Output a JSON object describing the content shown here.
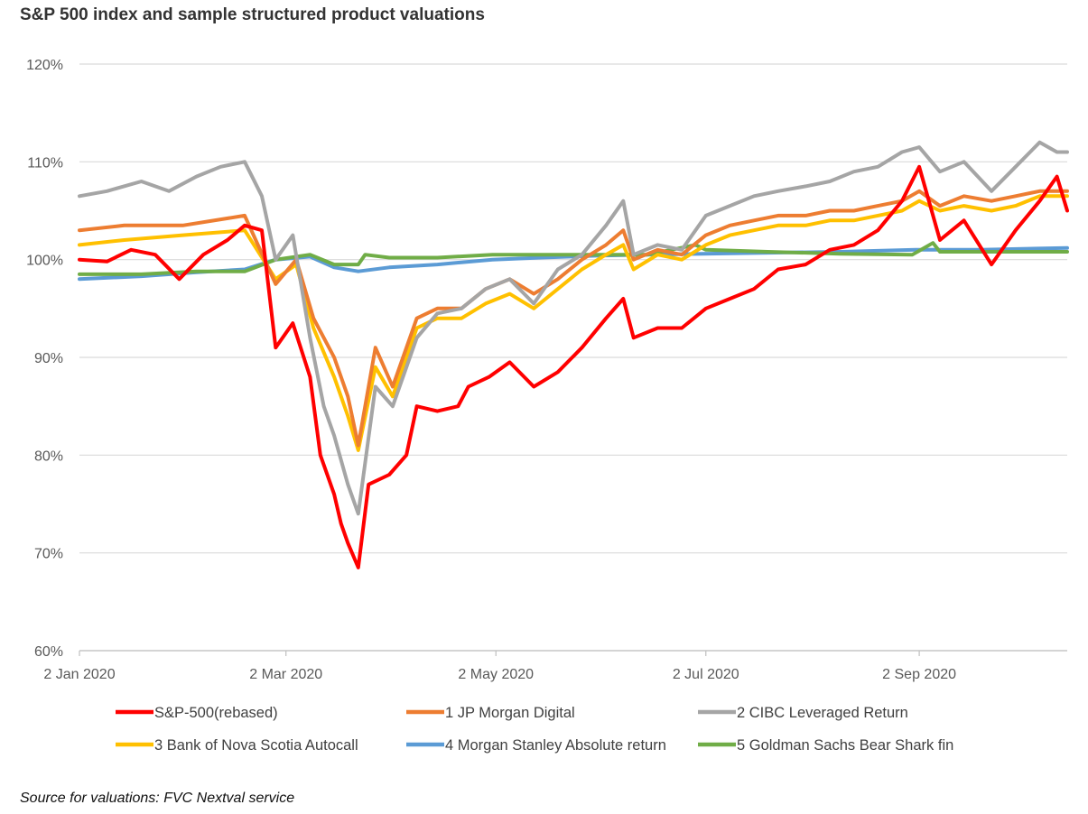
{
  "title": "S&P 500 index and sample structured product valuations",
  "source": "Source for valuations: FVC Nextval service",
  "chart_data": {
    "type": "line",
    "ylim": [
      60,
      120
    ],
    "xlim": [
      "2020-01-02",
      "2020-10-15"
    ],
    "y_ticks": [
      {
        "value": 60,
        "label": "60%"
      },
      {
        "value": 70,
        "label": "70%"
      },
      {
        "value": 80,
        "label": "80%"
      },
      {
        "value": 90,
        "label": "90%"
      },
      {
        "value": 100,
        "label": "100%"
      },
      {
        "value": 110,
        "label": "110%"
      },
      {
        "value": 120,
        "label": "120%"
      }
    ],
    "x_ticks": [
      {
        "date": "2020-01-02",
        "label": "2 Jan 2020"
      },
      {
        "date": "2020-03-02",
        "label": "2 Mar 2020"
      },
      {
        "date": "2020-05-02",
        "label": "2 May 2020"
      },
      {
        "date": "2020-07-02",
        "label": "2 Jul 2020"
      },
      {
        "date": "2020-09-02",
        "label": "2 Sep 2020"
      }
    ],
    "grid": "horizontal",
    "legend_position": "bottom",
    "series": [
      {
        "name": "S&P-500(rebased)",
        "color": "#ff0000",
        "points": [
          [
            "2020-01-02",
            100
          ],
          [
            "2020-01-10",
            99.8
          ],
          [
            "2020-01-17",
            101
          ],
          [
            "2020-01-24",
            100.5
          ],
          [
            "2020-01-31",
            98
          ],
          [
            "2020-02-07",
            100.5
          ],
          [
            "2020-02-14",
            102
          ],
          [
            "2020-02-19",
            103.5
          ],
          [
            "2020-02-24",
            103
          ],
          [
            "2020-02-28",
            91
          ],
          [
            "2020-03-04",
            93.5
          ],
          [
            "2020-03-09",
            88
          ],
          [
            "2020-03-12",
            80
          ],
          [
            "2020-03-16",
            76
          ],
          [
            "2020-03-18",
            73
          ],
          [
            "2020-03-20",
            71
          ],
          [
            "2020-03-23",
            68.5
          ],
          [
            "2020-03-26",
            77
          ],
          [
            "2020-04-01",
            78
          ],
          [
            "2020-04-06",
            80
          ],
          [
            "2020-04-09",
            85
          ],
          [
            "2020-04-15",
            84.5
          ],
          [
            "2020-04-21",
            85
          ],
          [
            "2020-04-24",
            87
          ],
          [
            "2020-04-30",
            88
          ],
          [
            "2020-05-06",
            89.5
          ],
          [
            "2020-05-13",
            87
          ],
          [
            "2020-05-20",
            88.5
          ],
          [
            "2020-05-27",
            91
          ],
          [
            "2020-06-03",
            94
          ],
          [
            "2020-06-08",
            96
          ],
          [
            "2020-06-11",
            92
          ],
          [
            "2020-06-18",
            93
          ],
          [
            "2020-06-25",
            93
          ],
          [
            "2020-07-02",
            95
          ],
          [
            "2020-07-09",
            96
          ],
          [
            "2020-07-16",
            97
          ],
          [
            "2020-07-23",
            99
          ],
          [
            "2020-07-31",
            99.5
          ],
          [
            "2020-08-07",
            101
          ],
          [
            "2020-08-14",
            101.5
          ],
          [
            "2020-08-21",
            103
          ],
          [
            "2020-08-28",
            106
          ],
          [
            "2020-09-02",
            109.5
          ],
          [
            "2020-09-08",
            102
          ],
          [
            "2020-09-15",
            104
          ],
          [
            "2020-09-23",
            99.5
          ],
          [
            "2020-09-30",
            103
          ],
          [
            "2020-10-07",
            106
          ],
          [
            "2020-10-12",
            108.5
          ],
          [
            "2020-10-15",
            105
          ]
        ]
      },
      {
        "name": "1 JP Morgan Digital",
        "color": "#ed7d31",
        "points": [
          [
            "2020-01-02",
            103
          ],
          [
            "2020-01-15",
            103.5
          ],
          [
            "2020-02-01",
            103.5
          ],
          [
            "2020-02-19",
            104.5
          ],
          [
            "2020-02-28",
            97.5
          ],
          [
            "2020-03-05",
            100
          ],
          [
            "2020-03-10",
            94
          ],
          [
            "2020-03-16",
            90
          ],
          [
            "2020-03-20",
            86
          ],
          [
            "2020-03-23",
            81
          ],
          [
            "2020-03-28",
            91
          ],
          [
            "2020-04-02",
            87
          ],
          [
            "2020-04-09",
            94
          ],
          [
            "2020-04-15",
            95
          ],
          [
            "2020-04-22",
            95
          ],
          [
            "2020-04-29",
            97
          ],
          [
            "2020-05-06",
            98
          ],
          [
            "2020-05-13",
            96.5
          ],
          [
            "2020-05-20",
            98
          ],
          [
            "2020-05-27",
            100
          ],
          [
            "2020-06-03",
            101.5
          ],
          [
            "2020-06-08",
            103
          ],
          [
            "2020-06-11",
            100
          ],
          [
            "2020-06-18",
            101
          ],
          [
            "2020-06-25",
            100.5
          ],
          [
            "2020-07-02",
            102.5
          ],
          [
            "2020-07-09",
            103.5
          ],
          [
            "2020-07-16",
            104
          ],
          [
            "2020-07-23",
            104.5
          ],
          [
            "2020-07-31",
            104.5
          ],
          [
            "2020-08-07",
            105
          ],
          [
            "2020-08-14",
            105
          ],
          [
            "2020-08-21",
            105.5
          ],
          [
            "2020-08-28",
            106
          ],
          [
            "2020-09-02",
            107
          ],
          [
            "2020-09-08",
            105.5
          ],
          [
            "2020-09-15",
            106.5
          ],
          [
            "2020-09-23",
            106
          ],
          [
            "2020-09-30",
            106.5
          ],
          [
            "2020-10-07",
            107
          ],
          [
            "2020-10-15",
            107
          ]
        ]
      },
      {
        "name": "2 CIBC Leveraged Return",
        "color": "#a5a5a5",
        "points": [
          [
            "2020-01-02",
            106.5
          ],
          [
            "2020-01-10",
            107
          ],
          [
            "2020-01-20",
            108
          ],
          [
            "2020-01-28",
            107
          ],
          [
            "2020-02-05",
            108.5
          ],
          [
            "2020-02-12",
            109.5
          ],
          [
            "2020-02-19",
            110
          ],
          [
            "2020-02-24",
            106.5
          ],
          [
            "2020-02-28",
            100
          ],
          [
            "2020-03-04",
            102.5
          ],
          [
            "2020-03-09",
            92
          ],
          [
            "2020-03-13",
            85
          ],
          [
            "2020-03-16",
            82
          ],
          [
            "2020-03-20",
            77
          ],
          [
            "2020-03-23",
            74
          ],
          [
            "2020-03-28",
            87
          ],
          [
            "2020-04-02",
            85
          ],
          [
            "2020-04-09",
            92
          ],
          [
            "2020-04-15",
            94.5
          ],
          [
            "2020-04-22",
            95
          ],
          [
            "2020-04-29",
            97
          ],
          [
            "2020-05-06",
            98
          ],
          [
            "2020-05-13",
            95.5
          ],
          [
            "2020-05-20",
            99
          ],
          [
            "2020-05-27",
            100.5
          ],
          [
            "2020-06-03",
            103.5
          ],
          [
            "2020-06-08",
            106
          ],
          [
            "2020-06-11",
            100.5
          ],
          [
            "2020-06-18",
            101.5
          ],
          [
            "2020-06-25",
            101
          ],
          [
            "2020-07-02",
            104.5
          ],
          [
            "2020-07-09",
            105.5
          ],
          [
            "2020-07-16",
            106.5
          ],
          [
            "2020-07-23",
            107
          ],
          [
            "2020-07-31",
            107.5
          ],
          [
            "2020-08-07",
            108
          ],
          [
            "2020-08-14",
            109
          ],
          [
            "2020-08-21",
            109.5
          ],
          [
            "2020-08-28",
            111
          ],
          [
            "2020-09-02",
            111.5
          ],
          [
            "2020-09-08",
            109
          ],
          [
            "2020-09-15",
            110
          ],
          [
            "2020-09-23",
            107
          ],
          [
            "2020-09-30",
            109.5
          ],
          [
            "2020-10-07",
            112
          ],
          [
            "2020-10-12",
            111
          ],
          [
            "2020-10-15",
            111
          ]
        ]
      },
      {
        "name": "3 Bank of Nova Scotia Autocall",
        "color": "#ffc000",
        "points": [
          [
            "2020-01-02",
            101.5
          ],
          [
            "2020-01-15",
            102
          ],
          [
            "2020-02-01",
            102.5
          ],
          [
            "2020-02-19",
            103
          ],
          [
            "2020-02-28",
            98
          ],
          [
            "2020-03-05",
            99.5
          ],
          [
            "2020-03-10",
            93
          ],
          [
            "2020-03-16",
            88
          ],
          [
            "2020-03-20",
            84
          ],
          [
            "2020-03-23",
            80.5
          ],
          [
            "2020-03-28",
            89
          ],
          [
            "2020-04-02",
            86
          ],
          [
            "2020-04-09",
            93
          ],
          [
            "2020-04-15",
            94
          ],
          [
            "2020-04-22",
            94
          ],
          [
            "2020-04-29",
            95.5
          ],
          [
            "2020-05-06",
            96.5
          ],
          [
            "2020-05-13",
            95
          ],
          [
            "2020-05-20",
            97
          ],
          [
            "2020-05-27",
            99
          ],
          [
            "2020-06-03",
            100.5
          ],
          [
            "2020-06-08",
            101.5
          ],
          [
            "2020-06-11",
            99
          ],
          [
            "2020-06-18",
            100.5
          ],
          [
            "2020-06-25",
            100
          ],
          [
            "2020-07-02",
            101.5
          ],
          [
            "2020-07-09",
            102.5
          ],
          [
            "2020-07-16",
            103
          ],
          [
            "2020-07-23",
            103.5
          ],
          [
            "2020-07-31",
            103.5
          ],
          [
            "2020-08-07",
            104
          ],
          [
            "2020-08-14",
            104
          ],
          [
            "2020-08-21",
            104.5
          ],
          [
            "2020-08-28",
            105
          ],
          [
            "2020-09-02",
            106
          ],
          [
            "2020-09-08",
            105
          ],
          [
            "2020-09-15",
            105.5
          ],
          [
            "2020-09-23",
            105
          ],
          [
            "2020-09-30",
            105.5
          ],
          [
            "2020-10-07",
            106.5
          ],
          [
            "2020-10-15",
            106.5
          ]
        ]
      },
      {
        "name": "4 Morgan Stanley Absolute return",
        "color": "#5b9bd5",
        "points": [
          [
            "2020-01-02",
            98
          ],
          [
            "2020-01-20",
            98.3
          ],
          [
            "2020-02-05",
            98.7
          ],
          [
            "2020-02-19",
            99
          ],
          [
            "2020-02-28",
            100
          ],
          [
            "2020-03-09",
            100.3
          ],
          [
            "2020-03-16",
            99.2
          ],
          [
            "2020-03-23",
            98.8
          ],
          [
            "2020-04-01",
            99.2
          ],
          [
            "2020-04-15",
            99.5
          ],
          [
            "2020-05-01",
            100
          ],
          [
            "2020-05-15",
            100.2
          ],
          [
            "2020-06-01",
            100.4
          ],
          [
            "2020-06-15",
            100.5
          ],
          [
            "2020-07-01",
            100.6
          ],
          [
            "2020-07-20",
            100.7
          ],
          [
            "2020-08-10",
            100.8
          ],
          [
            "2020-09-01",
            101
          ],
          [
            "2020-09-20",
            101
          ],
          [
            "2020-10-15",
            101.2
          ]
        ]
      },
      {
        "name": "5 Goldman Sachs Bear Shark fin",
        "color": "#70ad47",
        "points": [
          [
            "2020-01-02",
            98.5
          ],
          [
            "2020-01-20",
            98.5
          ],
          [
            "2020-02-05",
            98.8
          ],
          [
            "2020-02-19",
            98.8
          ],
          [
            "2020-02-28",
            100
          ],
          [
            "2020-03-09",
            100.5
          ],
          [
            "2020-03-16",
            99.5
          ],
          [
            "2020-03-23",
            99.5
          ],
          [
            "2020-03-25",
            100.5
          ],
          [
            "2020-04-01",
            100.2
          ],
          [
            "2020-04-15",
            100.2
          ],
          [
            "2020-05-01",
            100.5
          ],
          [
            "2020-05-15",
            100.5
          ],
          [
            "2020-06-01",
            100.5
          ],
          [
            "2020-06-15",
            100.5
          ],
          [
            "2020-06-29",
            101.5
          ],
          [
            "2020-07-02",
            101
          ],
          [
            "2020-07-20",
            100.8
          ],
          [
            "2020-08-10",
            100.6
          ],
          [
            "2020-08-31",
            100.5
          ],
          [
            "2020-09-06",
            101.7
          ],
          [
            "2020-09-08",
            100.8
          ],
          [
            "2020-09-20",
            100.8
          ],
          [
            "2020-10-01",
            100.8
          ],
          [
            "2020-10-15",
            100.8
          ]
        ]
      }
    ]
  }
}
